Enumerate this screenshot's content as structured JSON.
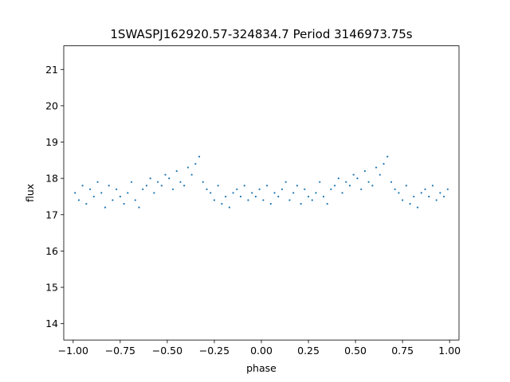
{
  "chart_data": {
    "type": "scatter",
    "title": "1SWASPJ162920.57-324834.7 Period 3146973.75s",
    "xlabel": "phase",
    "ylabel": "flux",
    "xlim": [
      -1.05,
      1.05
    ],
    "ylim": [
      13.55,
      21.65
    ],
    "x_ticks": [
      -1.0,
      -0.75,
      -0.5,
      -0.25,
      0.0,
      0.25,
      0.5,
      0.75,
      1.0
    ],
    "x_tick_labels": [
      "−1.00",
      "−0.75",
      "−0.50",
      "−0.25",
      "0.00",
      "0.25",
      "0.50",
      "0.75",
      "1.00"
    ],
    "y_ticks": [
      14,
      15,
      16,
      17,
      18,
      19,
      20,
      21
    ],
    "y_tick_labels": [
      "14",
      "15",
      "16",
      "17",
      "18",
      "19",
      "20",
      "21"
    ],
    "grid": false,
    "marker_color": "#1f77b4",
    "series": [
      {
        "x": [
          -0.99,
          -0.97,
          -0.95,
          -0.93,
          -0.91,
          -0.89,
          -0.87,
          -0.85,
          -0.83,
          -0.81,
          -0.79,
          -0.77,
          -0.75,
          -0.73,
          -0.71,
          -0.69,
          -0.67,
          -0.65,
          -0.63,
          -0.61,
          -0.59,
          -0.57,
          -0.55,
          -0.53,
          -0.51,
          -0.49,
          -0.47,
          -0.45,
          -0.43,
          -0.41,
          -0.39,
          -0.37,
          -0.35,
          -0.33,
          -0.31,
          -0.29,
          -0.27,
          -0.25,
          -0.23,
          -0.21,
          -0.19,
          -0.17,
          -0.15,
          -0.13,
          -0.11,
          -0.09,
          -0.07,
          -0.05,
          -0.03,
          -0.01,
          0.01,
          0.03,
          0.05,
          0.07,
          0.09,
          0.11,
          0.13,
          0.15,
          0.17,
          0.19,
          0.21,
          0.23,
          0.25,
          0.27,
          0.29,
          0.31,
          0.33,
          0.35,
          0.37,
          0.39,
          0.41,
          0.43,
          0.45,
          0.47,
          0.49,
          0.51,
          0.53,
          0.55,
          0.57,
          0.59,
          0.61,
          0.63,
          0.65,
          0.67,
          0.69,
          0.71,
          0.73,
          0.75,
          0.77,
          0.79,
          0.81,
          0.83,
          0.85,
          0.87,
          0.89,
          0.91,
          0.93,
          0.95,
          0.97,
          0.99
        ],
        "y": [
          17.6,
          17.4,
          17.8,
          17.3,
          17.7,
          17.5,
          17.9,
          17.6,
          17.2,
          17.8,
          17.4,
          17.7,
          17.5,
          17.3,
          17.6,
          17.9,
          17.4,
          17.2,
          17.7,
          17.8,
          18.0,
          17.6,
          17.9,
          17.8,
          18.1,
          18.0,
          17.7,
          18.2,
          17.9,
          17.8,
          18.3,
          18.1,
          18.4,
          18.6,
          17.9,
          17.7,
          17.6,
          17.4,
          17.8,
          17.3,
          17.5,
          17.2,
          17.6,
          17.7,
          17.5,
          17.8,
          17.4,
          17.6,
          17.5,
          17.7,
          17.4,
          17.8,
          17.3,
          17.6,
          17.5,
          17.7,
          17.9,
          17.4,
          17.6,
          17.8,
          17.3,
          17.7,
          17.5,
          17.4,
          17.6,
          17.9,
          17.5,
          17.3,
          17.7,
          17.8,
          18.0,
          17.6,
          17.9,
          17.8,
          18.1,
          18.0,
          17.7,
          18.2,
          17.9,
          17.8,
          18.3,
          18.1,
          18.4,
          18.6,
          17.9,
          17.7,
          17.6,
          17.4,
          17.8,
          17.3,
          17.5,
          17.2,
          17.6,
          17.7,
          17.5,
          17.8,
          17.4,
          17.6,
          17.5,
          17.7
        ]
      }
    ]
  }
}
